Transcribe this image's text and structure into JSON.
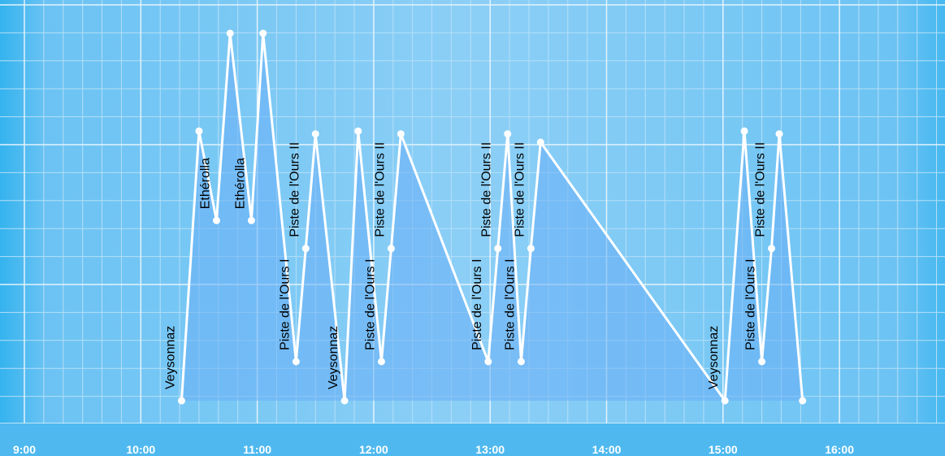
{
  "chart_data": {
    "type": "line",
    "x_unit": "time of day",
    "xlim": [
      "9:00",
      "16:40"
    ],
    "ylim": [
      0,
      3
    ],
    "grid": true,
    "x_ticks": [
      "9:00",
      "10:00",
      "11:00",
      "12:00",
      "13:00",
      "14:00",
      "15:00",
      "16:00"
    ],
    "points": [
      {
        "t": "10:21",
        "y": 0.15,
        "label": "Veysonnaz"
      },
      {
        "t": "10:30",
        "y": 2.08
      },
      {
        "t": "10:39",
        "y": 1.44,
        "label": "Ethérolla"
      },
      {
        "t": "10:46",
        "y": 2.78
      },
      {
        "t": "10:57",
        "y": 1.44,
        "label": "Ethérolla"
      },
      {
        "t": "11:03",
        "y": 2.78
      },
      {
        "t": "11:20",
        "y": 0.43,
        "label": "Piste de l'Ours I"
      },
      {
        "t": "11:25",
        "y": 1.24,
        "label": "Piste de l'Ours II"
      },
      {
        "t": "11:30",
        "y": 2.06
      },
      {
        "t": "11:45",
        "y": 0.15,
        "label": "Veysonnaz"
      },
      {
        "t": "11:52",
        "y": 2.08
      },
      {
        "t": "12:04",
        "y": 0.43,
        "label": "Piste de l'Ours I"
      },
      {
        "t": "12:09",
        "y": 1.24,
        "label": "Piste de l'Ours II"
      },
      {
        "t": "12:14",
        "y": 2.06
      },
      {
        "t": "12:59",
        "y": 0.43,
        "label": "Piste de l'Ours I"
      },
      {
        "t": "13:04",
        "y": 1.24,
        "label": "Piste de l'Ours II"
      },
      {
        "t": "13:09",
        "y": 2.06
      },
      {
        "t": "13:16",
        "y": 0.43,
        "label": "Piste de l'Ours I"
      },
      {
        "t": "13:21",
        "y": 1.24,
        "label": "Piste de l'Ours II"
      },
      {
        "t": "13:26",
        "y": 2.0
      },
      {
        "t": "15:01",
        "y": 0.15,
        "label": "Veysonnaz"
      },
      {
        "t": "15:11",
        "y": 2.08
      },
      {
        "t": "15:20",
        "y": 0.43,
        "label": "Piste de l'Ours I"
      },
      {
        "t": "15:25",
        "y": 1.24,
        "label": "Piste de l'Ours II"
      },
      {
        "t": "15:29",
        "y": 2.06
      },
      {
        "t": "15:41",
        "y": 0.15
      }
    ]
  },
  "colors": {
    "background": "#87cbf5",
    "band_left": "#35b3ee",
    "axis_bar": "#4fb9ef",
    "grid_major": "#e3f3fc",
    "grid_minor": "#b5dff8",
    "line": "#ffffff",
    "area": "#6aaef5",
    "label": "#000000"
  }
}
